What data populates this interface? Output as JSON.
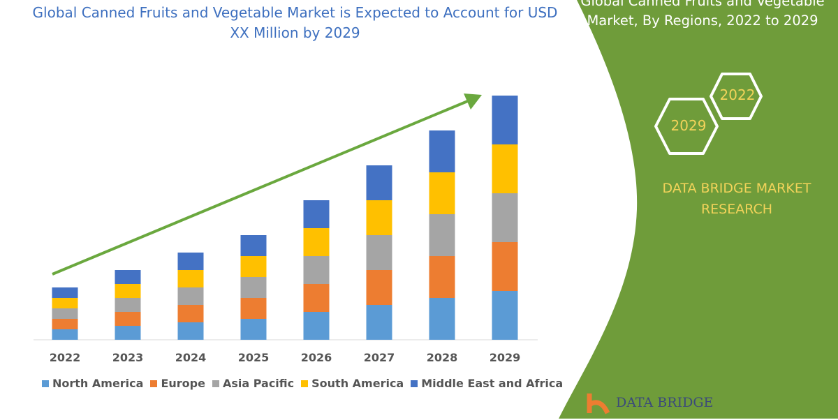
{
  "chart_data": {
    "type": "bar",
    "stacked": true,
    "title": "Global Canned Fruits and Vegetable Market is Expected to Account for USD XX Million by 2029",
    "categories": [
      "2022",
      "2023",
      "2024",
      "2025",
      "2026",
      "2027",
      "2028",
      "2029"
    ],
    "series": [
      {
        "name": "North America",
        "color": "#5b9bd5",
        "values": [
          15,
          20,
          25,
          30,
          40,
          50,
          60,
          70
        ]
      },
      {
        "name": "Europe",
        "color": "#ed7d31",
        "values": [
          15,
          20,
          25,
          30,
          40,
          50,
          60,
          70
        ]
      },
      {
        "name": "Asia Pacific",
        "color": "#a5a5a5",
        "values": [
          15,
          20,
          25,
          30,
          40,
          50,
          60,
          70
        ]
      },
      {
        "name": "South America",
        "color": "#ffc000",
        "values": [
          15,
          20,
          25,
          30,
          40,
          50,
          60,
          70
        ]
      },
      {
        "name": "Middle East and Africa",
        "color": "#4472c4",
        "values": [
          15,
          20,
          25,
          30,
          40,
          50,
          60,
          70
        ]
      }
    ],
    "ylim": [
      0,
      350
    ],
    "y_axis_shown": false,
    "grid": false,
    "legend_placement": "bottom",
    "trend_arrow_color": "#6aa83e"
  },
  "side_panel": {
    "title": "Global Canned Fruits and Vegetable Market, By Regions, 2022 to 2029",
    "hex_years": [
      "2022",
      "2029"
    ],
    "brand": "DATA BRIDGE MARKET RESEARCH",
    "logo_text": "DATA BRIDGE",
    "color": "#6f9c3a",
    "accent": "#f2d35a"
  }
}
